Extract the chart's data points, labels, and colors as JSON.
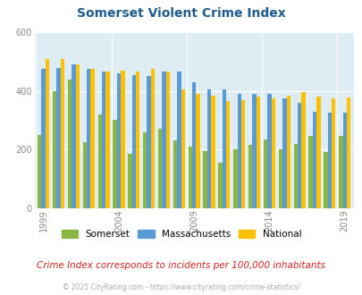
{
  "title": "Somerset Violent Crime Index",
  "subtitle": "Crime Index corresponds to incidents per 100,000 inhabitants",
  "footer": "© 2025 CityRating.com - https://www.cityrating.com/crime-statistics/",
  "years": [
    1999,
    2000,
    2001,
    2002,
    2003,
    2004,
    2005,
    2006,
    2007,
    2008,
    2009,
    2010,
    2011,
    2012,
    2013,
    2014,
    2015,
    2016,
    2017,
    2018,
    2019
  ],
  "somerset": [
    250,
    400,
    440,
    225,
    320,
    300,
    185,
    260,
    270,
    230,
    210,
    195,
    155,
    200,
    215,
    235,
    200,
    220,
    245,
    190,
    245
  ],
  "massachusetts": [
    475,
    480,
    490,
    475,
    465,
    460,
    455,
    450,
    465,
    465,
    430,
    405,
    405,
    390,
    390,
    390,
    375,
    360,
    330,
    325,
    325
  ],
  "national": [
    510,
    510,
    490,
    475,
    465,
    470,
    465,
    475,
    465,
    405,
    390,
    385,
    365,
    370,
    380,
    375,
    385,
    395,
    380,
    375,
    378
  ],
  "ylim": [
    0,
    600
  ],
  "yticks": [
    0,
    200,
    400,
    600
  ],
  "tick_years": [
    1999,
    2004,
    2009,
    2014,
    2019
  ],
  "color_somerset": "#8ab642",
  "color_massachusetts": "#5b9bd5",
  "color_national": "#ffc000",
  "bg_color": "#deedf4",
  "title_color": "#1f5c8b",
  "subtitle_color": "#cc2222",
  "footer_color": "#aaaaaa",
  "bar_width": 0.26
}
